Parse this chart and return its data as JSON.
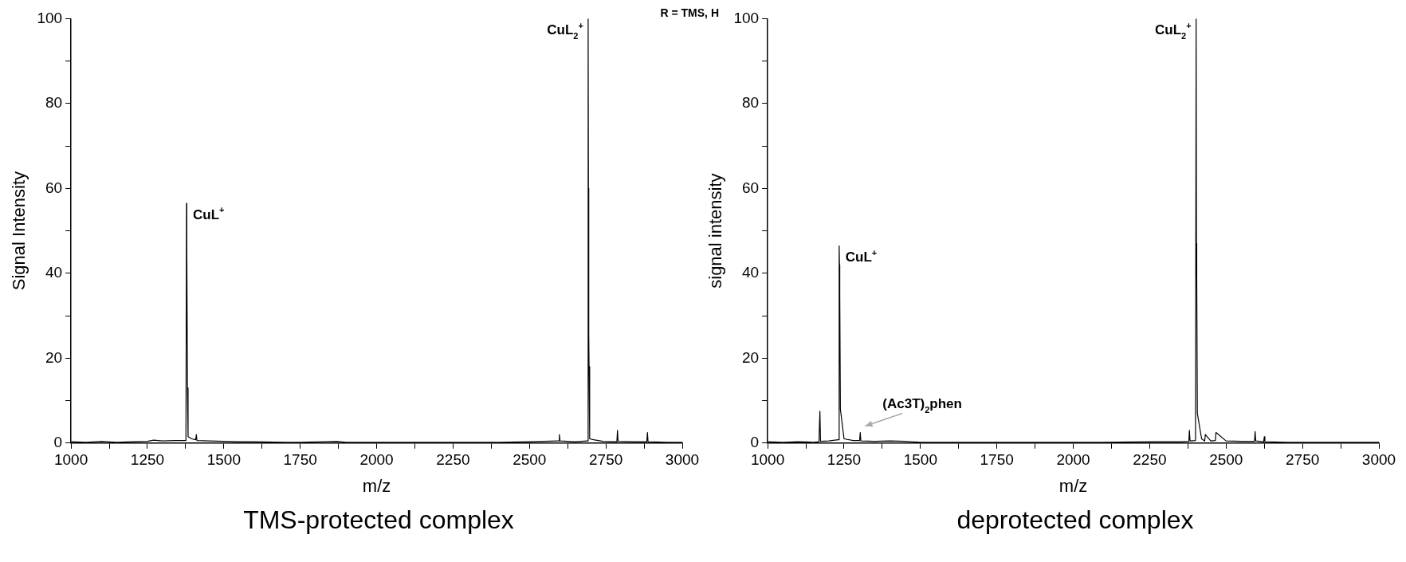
{
  "chart_data": [
    {
      "type": "line",
      "title": "TMS-protected complex",
      "xlabel": "m/z",
      "ylabel": "Signal Intensity",
      "annotations": [
        "R = TMS, H",
        {
          "text": "CuL$^{+}$",
          "x": 1378,
          "y": 56.5
        },
        {
          "text": "CuL$_{2}$$^{+}$",
          "x": 2692,
          "y": 100
        }
      ],
      "x": [
        1000,
        1050,
        1100,
        1150,
        1200,
        1250,
        1270,
        1300,
        1340,
        1376,
        1378,
        1379,
        1381,
        1383,
        1395,
        1408,
        1410,
        1412,
        1450,
        1500,
        1550,
        1600,
        1700,
        1750,
        1870,
        1900,
        2000,
        2100,
        2250,
        2400,
        2500,
        2596,
        2598,
        2600,
        2650,
        2690,
        2692,
        2693,
        2694,
        2695,
        2697,
        2710,
        2740,
        2786,
        2788,
        2790,
        2840,
        2884,
        2886,
        2888,
        2950,
        3000
      ],
      "series": [
        {
          "color": "#000000",
          "values": [
            0.3,
            0.2,
            0.4,
            0.2,
            0.3,
            0.4,
            0.7,
            0.5,
            0.6,
            0.6,
            56.5,
            44,
            13,
            1.5,
            1,
            0.8,
            2,
            0.6,
            0.5,
            0.4,
            0.3,
            0.3,
            0.2,
            0.2,
            0.4,
            0.2,
            0.2,
            0.2,
            0.2,
            0.2,
            0.3,
            0.5,
            2,
            0.5,
            0.3,
            0.5,
            100,
            60,
            26,
            18,
            1,
            0.8,
            0.4,
            0.3,
            3,
            0.4,
            0.3,
            0.3,
            2.5,
            0.3,
            0.2,
            0.2
          ]
        }
      ],
      "xlim": [
        1000,
        3000
      ],
      "xticks": [
        1000,
        {
          "value": 1125,
          "label": null
        },
        1250,
        {
          "value": 1375,
          "label": null
        },
        1500,
        {
          "value": 1625,
          "label": null
        },
        1750,
        {
          "value": 1875,
          "label": null
        },
        2000,
        {
          "value": 2125,
          "label": null
        },
        2250,
        {
          "value": 2375,
          "label": null
        },
        2500,
        {
          "value": 2625,
          "label": null
        },
        2750,
        {
          "value": 2875,
          "label": null
        },
        3000
      ],
      "ylim": [
        0,
        100
      ],
      "yticks": [
        0,
        {
          "value": 10,
          "label": null
        },
        20,
        {
          "value": 30,
          "label": null
        },
        40,
        {
          "value": 50,
          "label": null
        },
        60,
        {
          "value": 70,
          "label": null
        },
        80,
        {
          "value": 90,
          "label": null
        },
        100
      ],
      "marker": "none",
      "line_style": "solid",
      "grid": false,
      "legend": false
    },
    {
      "type": "line",
      "title": "deprotected complex",
      "xlabel": "m/z",
      "ylabel": "signal intensity",
      "annotations": [
        {
          "text": "CuL$^{+}$",
          "x": 1234,
          "y": 46.5
        },
        {
          "text": "CuL$_{2}$$^{+}$",
          "x": 2402,
          "y": 100
        },
        {
          "text": "(Ac3T)$_{2}$phen",
          "x": 1303,
          "y": 2.5
        }
      ],
      "x": [
        1000,
        1050,
        1100,
        1150,
        1168,
        1171,
        1173,
        1200,
        1220,
        1232,
        1234,
        1235,
        1236,
        1238,
        1250,
        1280,
        1301,
        1303,
        1305,
        1350,
        1400,
        1450,
        1500,
        1600,
        1750,
        1900,
        2000,
        2100,
        2250,
        2350,
        2378,
        2380,
        2382,
        2400,
        2402,
        2403,
        2404,
        2406,
        2420,
        2430,
        2432,
        2450,
        2465,
        2467,
        2500,
        2550,
        2593,
        2595,
        2597,
        2623,
        2625,
        2627,
        2700,
        2850,
        3000
      ],
      "series": [
        {
          "color": "#000000",
          "values": [
            0.3,
            0.2,
            0.3,
            0.2,
            0.3,
            7.5,
            0.4,
            0.5,
            0.7,
            0.8,
            46.5,
            42,
            35,
            8,
            1,
            0.6,
            0.6,
            2.5,
            0.5,
            0.4,
            0.5,
            0.4,
            0.2,
            0.2,
            0.2,
            0.2,
            0.2,
            0.2,
            0.3,
            0.3,
            0.4,
            3,
            0.5,
            0.6,
            100,
            47,
            39,
            7,
            1,
            0.5,
            2,
            0.5,
            0.6,
            2.5,
            0.5,
            0.4,
            0.4,
            2.7,
            0.5,
            0.3,
            1.5,
            0.3,
            0.2,
            0.2,
            0.2
          ]
        }
      ],
      "xlim": [
        1000,
        3000
      ],
      "xticks": [
        1000,
        {
          "value": 1125,
          "label": null
        },
        1250,
        {
          "value": 1375,
          "label": null
        },
        1500,
        {
          "value": 1625,
          "label": null
        },
        1750,
        {
          "value": 1875,
          "label": null
        },
        2000,
        {
          "value": 2125,
          "label": null
        },
        2250,
        {
          "value": 2375,
          "label": null
        },
        2500,
        {
          "value": 2625,
          "label": null
        },
        2750,
        {
          "value": 2875,
          "label": null
        },
        3000
      ],
      "ylim": [
        0,
        100
      ],
      "yticks": [
        0,
        {
          "value": 10,
          "label": null
        },
        20,
        {
          "value": 30,
          "label": null
        },
        40,
        {
          "value": 50,
          "label": null
        },
        60,
        {
          "value": 70,
          "label": null
        },
        80,
        {
          "value": 90,
          "label": null
        },
        100
      ],
      "marker": "none",
      "line_style": "solid",
      "grid": false,
      "legend": false
    }
  ]
}
